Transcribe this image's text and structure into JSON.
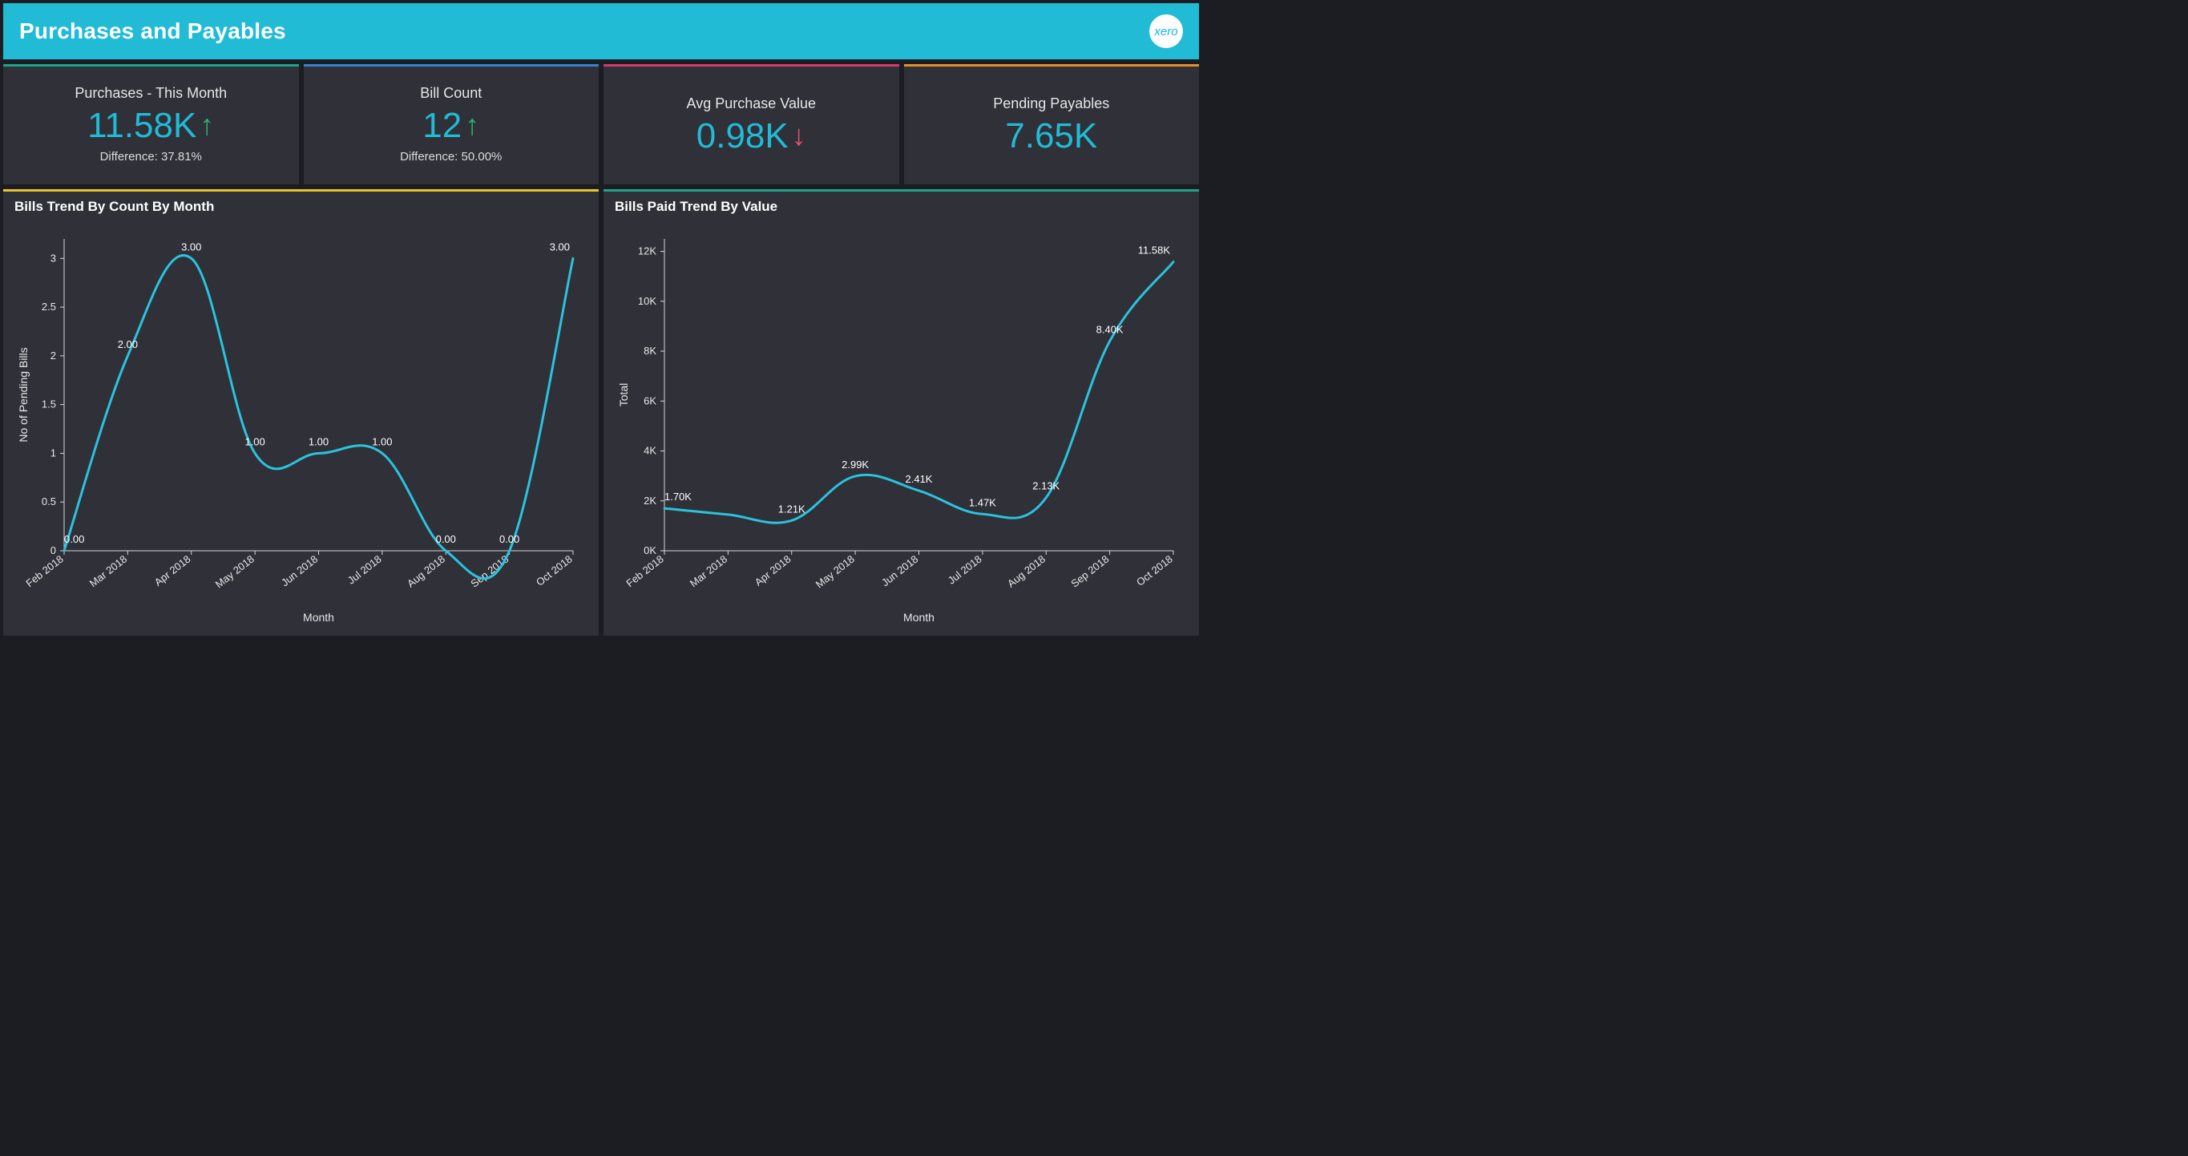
{
  "colors": {
    "page_bg": "#1c1d22",
    "panel_bg": "#2f3038",
    "header_bg": "#21bbd6",
    "primary_value": "#21bbd6",
    "up_arrow": "#29b473",
    "down_arrow": "#e25563",
    "text": "#ffffff",
    "text_muted": "#e6e6e6",
    "line_stroke": "#2bc3dd",
    "axis": "#d9d9d9"
  },
  "header": {
    "title": "Purchases and Payables",
    "logo_text": "xero"
  },
  "kpis": [
    {
      "label": "Purchases - This Month",
      "value": "11.58K",
      "arrow": "up",
      "diff": "Difference: 37.81%",
      "accent": "#1fa38a"
    },
    {
      "label": "Bill Count",
      "value": "12",
      "arrow": "up",
      "diff": "Difference: 50.00%",
      "accent": "#3b7fd1"
    },
    {
      "label": "Avg Purchase Value",
      "value": "0.98K",
      "arrow": "down",
      "diff": "",
      "accent": "#d63a6b"
    },
    {
      "label": "Pending Payables",
      "value": "7.65K",
      "arrow": "none",
      "diff": "",
      "accent": "#e2922c"
    }
  ],
  "chart_left": {
    "title": "Bills Trend By Count By Month",
    "accent": "#e9c429",
    "type": "line",
    "x_title": "Month",
    "y_title": "No of Pending Bills",
    "line_color": "#2bc3dd",
    "line_width": 3,
    "background_color": "#2f3038",
    "categories": [
      "Feb 2018",
      "Mar 2018",
      "Apr 2018",
      "May 2018",
      "Jun 2018",
      "Jul 2018",
      "Aug 2018",
      "Sep 2018",
      "Oct 2018"
    ],
    "values": [
      0.0,
      2.0,
      3.0,
      1.0,
      1.0,
      1.0,
      0.0,
      0.0,
      3.0
    ],
    "value_labels": [
      "0.00",
      "2.00",
      "3.00",
      "1.00",
      "1.00",
      "1.00",
      "0.00",
      "0.00",
      "3.00"
    ],
    "y_ticks": [
      0,
      0.5,
      1,
      1.5,
      2,
      2.5,
      3
    ],
    "y_tick_labels": [
      "0",
      "0.5",
      "1",
      "1.5",
      "2",
      "2.5",
      "3"
    ],
    "ylim": [
      0,
      3.2
    ],
    "label_fontsize": 13,
    "axis_fontsize": 13
  },
  "chart_right": {
    "title": "Bills Paid Trend By Value",
    "accent": "#1fa38a",
    "type": "line",
    "x_title": "Month",
    "y_title": "Total",
    "line_color": "#2bc3dd",
    "line_width": 3,
    "background_color": "#2f3038",
    "categories": [
      "Feb 2018",
      "Mar 2018",
      "Apr 2018",
      "May 2018",
      "Jun 2018",
      "Jul 2018",
      "Aug 2018",
      "Sep 2018",
      "Oct 2018"
    ],
    "values": [
      1.7,
      1.45,
      1.21,
      2.99,
      2.41,
      1.47,
      2.13,
      8.4,
      11.58
    ],
    "value_labels": [
      "1.70K",
      "",
      "1.21K",
      "2.99K",
      "2.41K",
      "1.47K",
      "2.13K",
      "8.40K",
      "11.58K"
    ],
    "y_ticks": [
      0,
      2,
      4,
      6,
      8,
      10,
      12
    ],
    "y_tick_labels": [
      "0K",
      "2K",
      "4K",
      "6K",
      "8K",
      "10K",
      "12K"
    ],
    "ylim": [
      0,
      12.5
    ],
    "label_fontsize": 13,
    "axis_fontsize": 13
  }
}
